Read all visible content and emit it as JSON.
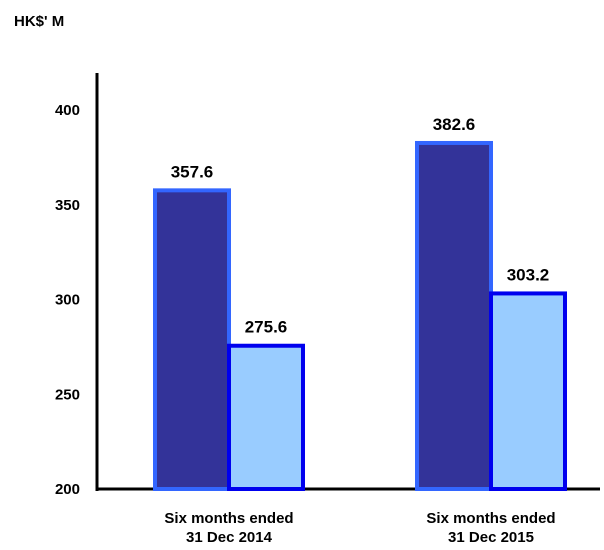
{
  "chart_data": {
    "type": "bar",
    "ylabel": "HK$' M",
    "categories": [
      [
        "Six months ended",
        "31 Dec 2014"
      ],
      [
        "Six months ended",
        "31 Dec 2015"
      ]
    ],
    "series": [
      {
        "values": [
          357.6,
          382.6
        ],
        "color": "#333399",
        "border_color": "#3366ff"
      },
      {
        "values": [
          275.6,
          303.2
        ],
        "color": "#99ccff",
        "border_color": "#0000ee"
      }
    ],
    "data_labels": [
      [
        "357.6",
        "382.6"
      ],
      [
        "275.6",
        "303.2"
      ]
    ],
    "yticks": [
      200,
      250,
      300,
      350,
      400
    ],
    "ylim": [
      200,
      415
    ],
    "grid": false,
    "legend": "none"
  }
}
